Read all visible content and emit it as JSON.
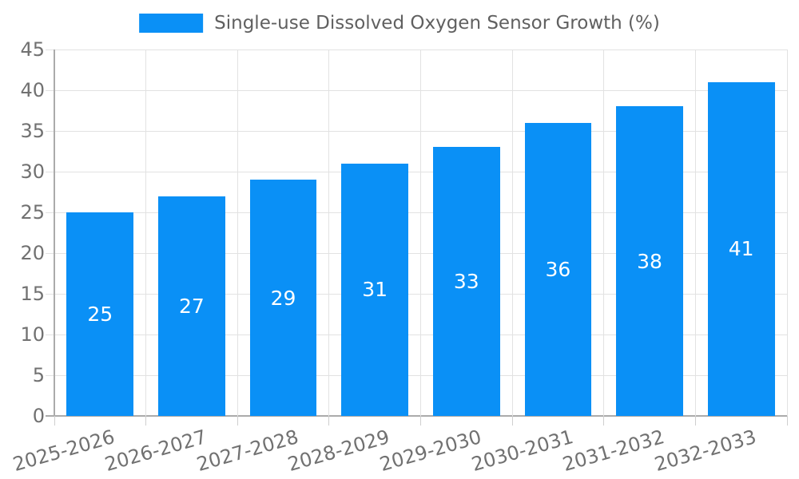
{
  "chart_data": {
    "type": "bar",
    "title": "Single-use Dissolved Oxygen Sensor Growth (%)",
    "categories": [
      "2025-2026",
      "2026-2027",
      "2027-2028",
      "2028-2029",
      "2029-2030",
      "2030-2031",
      "2031-2032",
      "2032-2033"
    ],
    "values": [
      25,
      27,
      29,
      31,
      33,
      36,
      38,
      41
    ],
    "xlabel": "",
    "ylabel": "",
    "ylim": [
      0,
      45
    ],
    "yticks": [
      0,
      5,
      10,
      15,
      20,
      25,
      30,
      35,
      40,
      45
    ],
    "grid": "both",
    "legend": {
      "position": "top-center",
      "label": "Single-use Dissolved Oxygen Sensor Growth (%)"
    },
    "bar_value_labels": "inside-center",
    "x_tick_rotation_deg": -16,
    "colors": {
      "bar": "#0a90f6",
      "bar_value_text": "#ffffff",
      "tick_text": "#717171",
      "title_text": "#606060",
      "grid": "#e2e2e2",
      "axis": "#ababab",
      "background": "#ffffff"
    }
  }
}
